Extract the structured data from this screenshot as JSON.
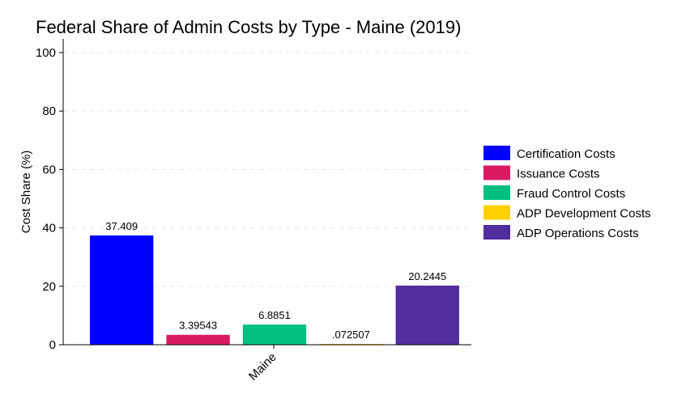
{
  "chart_data": {
    "type": "bar",
    "title": "Federal Share of Admin Costs by Type - Maine (2019)",
    "xlabel": "",
    "ylabel": "Cost Share (%)",
    "ylim": [
      0,
      100
    ],
    "yticks": [
      0,
      20,
      40,
      60,
      80,
      100
    ],
    "grid": true,
    "legend_position": "right",
    "categories": [
      "Maine"
    ],
    "series": [
      {
        "name": "Certification Costs",
        "color": "#0000ff",
        "values": [
          37.409
        ],
        "label": "37.409"
      },
      {
        "name": "Issuance Costs",
        "color": "#d81b60",
        "values": [
          3.39543
        ],
        "label": "3.39543"
      },
      {
        "name": "Fraud Control Costs",
        "color": "#00c080",
        "values": [
          6.8851
        ],
        "label": "6.8851"
      },
      {
        "name": "ADP Development Costs",
        "color": "#ffd000",
        "values": [
          0.072507
        ],
        "label": ".072507"
      },
      {
        "name": "ADP Operations Costs",
        "color": "#512d9e",
        "values": [
          20.2445
        ],
        "label": "20.2445"
      }
    ]
  }
}
